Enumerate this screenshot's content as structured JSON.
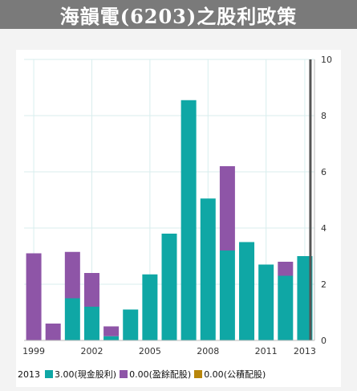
{
  "title": "海韻電(6203)之股利政策",
  "colors": {
    "cash": "#0fa7a5",
    "stock_earnings": "#8e55a7",
    "stock_capital": "#b8860b",
    "cursor": "#555555",
    "grid": "#d8eeee"
  },
  "legend": {
    "year": "2013",
    "items": [
      {
        "value": "3.00",
        "label": "(現金股利)"
      },
      {
        "value": "0.00",
        "label": "(盈餘配股)"
      },
      {
        "value": "0.00",
        "label": "(公積配股)"
      }
    ]
  },
  "chart_data": {
    "type": "bar",
    "stacked": true,
    "categories": [
      "1999",
      "2000",
      "2001",
      "2002",
      "2003",
      "2004",
      "2005",
      "2006",
      "2007",
      "2008",
      "2009",
      "2010",
      "2011",
      "2012",
      "2013"
    ],
    "series": [
      {
        "name": "現金股利",
        "values": [
          0,
          0,
          1.5,
          1.2,
          0.15,
          1.1,
          2.35,
          3.8,
          8.55,
          5.05,
          3.2,
          3.5,
          2.7,
          2.3,
          3.0
        ]
      },
      {
        "name": "盈餘配股",
        "values": [
          3.1,
          0.6,
          1.65,
          1.2,
          0.35,
          0,
          0,
          0,
          0,
          0,
          3.0,
          0,
          0,
          0.5,
          0
        ]
      },
      {
        "name": "公積配股",
        "values": [
          0,
          0,
          0,
          0,
          0,
          0,
          0,
          0,
          0,
          0,
          0,
          0,
          0,
          0,
          0
        ]
      }
    ],
    "x_tick_labels": [
      "1999",
      "2002",
      "2005",
      "2008",
      "2011",
      "2013"
    ],
    "y_tick_labels": [
      "0",
      "2",
      "4",
      "6",
      "8",
      "10"
    ],
    "ylim": [
      0,
      10
    ],
    "y_axis_side": "right",
    "grid": true,
    "highlight_category": "2013",
    "legend_position": "bottom"
  }
}
